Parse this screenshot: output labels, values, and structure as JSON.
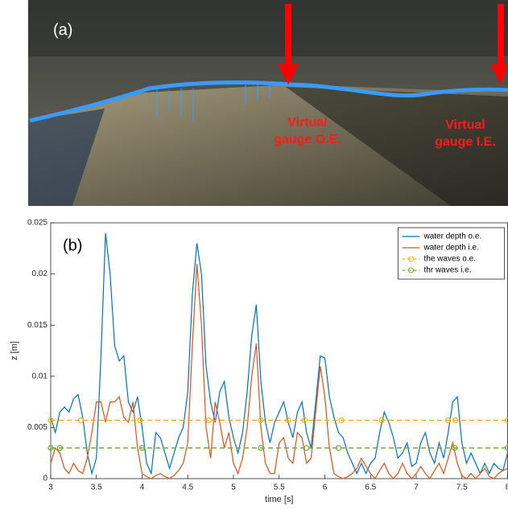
{
  "panel_a": {
    "label": "(a)",
    "annotations": [
      {
        "lines": [
          "Virtual",
          "gauge O.E."
        ]
      },
      {
        "lines": [
          "Virtual",
          "gauge I.E."
        ]
      }
    ]
  },
  "chart_data": {
    "type": "line",
    "panel_label": "(b)",
    "x_label": "time [s]",
    "y_label": "z [m]",
    "xlim": [
      3,
      8
    ],
    "ylim": [
      0,
      0.025
    ],
    "xticks": [
      3,
      3.5,
      4,
      4.5,
      5,
      5.5,
      6,
      6.5,
      7,
      7.5,
      8
    ],
    "yticks": [
      0,
      0.005,
      0.01,
      0.015,
      0.02,
      0.025
    ],
    "grid": false,
    "legend": "top-right",
    "x": [
      3,
      3.05,
      3.1,
      3.15,
      3.2,
      3.25,
      3.3,
      3.35,
      3.4,
      3.45,
      3.5,
      3.55,
      3.6,
      3.65,
      3.7,
      3.75,
      3.8,
      3.85,
      3.9,
      3.95,
      4,
      4.05,
      4.1,
      4.15,
      4.2,
      4.25,
      4.3,
      4.35,
      4.4,
      4.45,
      4.5,
      4.55,
      4.6,
      4.65,
      4.7,
      4.75,
      4.8,
      4.85,
      4.9,
      4.95,
      5,
      5.05,
      5.1,
      5.15,
      5.2,
      5.25,
      5.3,
      5.35,
      5.4,
      5.45,
      5.5,
      5.55,
      5.6,
      5.65,
      5.7,
      5.75,
      5.8,
      5.85,
      5.9,
      5.95,
      6,
      6.05,
      6.1,
      6.15,
      6.2,
      6.25,
      6.3,
      6.35,
      6.4,
      6.45,
      6.5,
      6.55,
      6.6,
      6.65,
      6.7,
      6.75,
      6.8,
      6.85,
      6.9,
      6.95,
      7,
      7.05,
      7.1,
      7.15,
      7.2,
      7.25,
      7.3,
      7.35,
      7.4,
      7.45,
      7.5,
      7.55,
      7.6,
      7.65,
      7.7,
      7.75,
      7.8,
      7.85,
      7.9,
      7.95,
      8
    ],
    "series": [
      {
        "name": "water depth o.e.",
        "color": "#0072bd",
        "style": "solid",
        "values": [
          0.006,
          0.0045,
          0.0065,
          0.007,
          0.0065,
          0.0078,
          0.0082,
          0.006,
          0.0025,
          0.0005,
          0.002,
          0.012,
          0.024,
          0.02,
          0.013,
          0.0115,
          0.012,
          0.0075,
          0.0065,
          0.008,
          0.005,
          0.0015,
          0.0005,
          0.0045,
          0.004,
          0.0025,
          0.001,
          0.0025,
          0.004,
          0.005,
          0.0085,
          0.018,
          0.023,
          0.02,
          0.011,
          0.0075,
          0.0055,
          0.0085,
          0.0095,
          0.006,
          0.004,
          0.0025,
          0.0045,
          0.0085,
          0.014,
          0.017,
          0.0095,
          0.0055,
          0.0035,
          0.0055,
          0.0065,
          0.0075,
          0.0055,
          0.004,
          0.0065,
          0.0075,
          0.0045,
          0.003,
          0.0075,
          0.012,
          0.0118,
          0.008,
          0.006,
          0.0045,
          0.004,
          0.0025,
          0.0015,
          0.0005,
          0.0015,
          0.0005,
          0.0015,
          0.002,
          0.0045,
          0.0065,
          0.0055,
          0.004,
          0.002,
          0.0025,
          0.0035,
          0.0012,
          0.0015,
          0.0035,
          0.0045,
          0.0025,
          0.0015,
          0.0035,
          0.002,
          0.0045,
          0.0075,
          0.008,
          0.0035,
          0.0015,
          0.0025,
          0.0015,
          0.0005,
          0.0015,
          0.0005,
          0.0015,
          0.001,
          0.0008,
          0.0025
        ]
      },
      {
        "name": "water depth i.e.",
        "color": "#d95319",
        "style": "solid",
        "values": [
          0.0015,
          0.003,
          0.0025,
          0.001,
          0.0005,
          0.0015,
          0.0008,
          0.0005,
          0.002,
          0.0045,
          0.0075,
          0.0075,
          0.0055,
          0.0075,
          0.0075,
          0.008,
          0.006,
          0.0055,
          0.0075,
          0.003,
          0.0005,
          0.0002,
          0,
          0.0003,
          0.0005,
          0.0002,
          0,
          0.0003,
          0.0008,
          0.0015,
          0.0035,
          0.013,
          0.021,
          0.015,
          0.005,
          0.002,
          0.0075,
          0.0055,
          0.003,
          0.0045,
          0.0015,
          0.0005,
          0.002,
          0.005,
          0.01,
          0.0132,
          0.005,
          0.0015,
          0.0005,
          0.0005,
          0.0035,
          0.004,
          0.002,
          0.0015,
          0.0045,
          0.004,
          0.0015,
          0.002,
          0.0065,
          0.011,
          0.008,
          0.003,
          0.0005,
          0.0002,
          0,
          0.0002,
          0.0005,
          0.001,
          0.002,
          0.0012,
          0.0005,
          0,
          0.0008,
          0.0015,
          0.0005,
          0,
          0.0005,
          0.0015,
          0.0005,
          0,
          0.0005,
          0.0012,
          0.0005,
          0,
          0.0008,
          0.0015,
          0.0005,
          0.002,
          0.0035,
          0.0015,
          0.0003,
          0,
          0.0005,
          0,
          0.0005,
          0.001,
          0.0002,
          0,
          0.0005,
          0.0008,
          0.001
        ]
      },
      {
        "name": "the waves o.e.",
        "color": "#edb120",
        "style": "dashed-marker",
        "x": [
          3,
          3.33,
          3.98,
          4.73,
          5.3,
          5.6,
          5.78,
          6.18,
          6.62,
          7.35,
          7.43,
          8
        ],
        "values": [
          0.0057,
          0.0057,
          0.0057,
          0.0057,
          0.0057,
          0.0057,
          0.0057,
          0.0057,
          0.0057,
          0.0057,
          0.0057,
          0.0057
        ]
      },
      {
        "name": "thr waves i.e.",
        "color": "#77ac30",
        "style": "dashed-marker",
        "x": [
          3,
          3.1,
          4.0,
          5.3,
          5.8,
          6.15,
          7.42,
          8
        ],
        "values": [
          0.003,
          0.003,
          0.003,
          0.003,
          0.003,
          0.003,
          0.003,
          0.003
        ]
      }
    ]
  }
}
